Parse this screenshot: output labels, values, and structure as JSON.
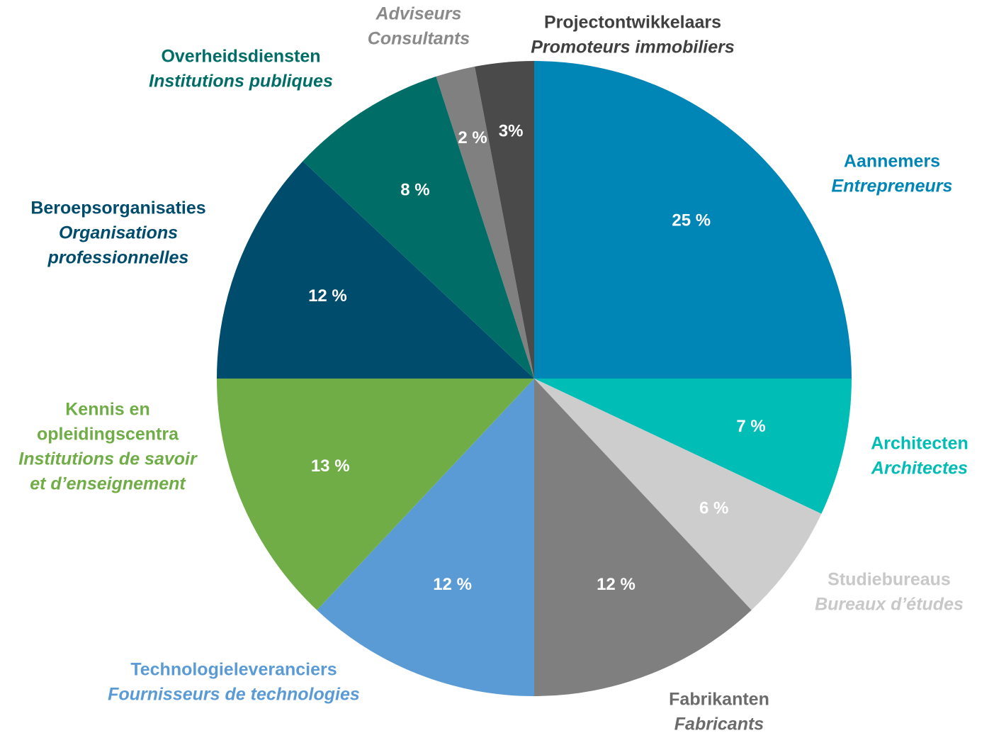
{
  "chart_data": {
    "type": "pie",
    "categories": [
      {
        "nl": [
          "Aannemers"
        ],
        "fr": [
          "Entrepreneurs"
        ]
      },
      {
        "nl": [
          "Architecten"
        ],
        "fr": [
          "Architectes"
        ]
      },
      {
        "nl": [
          "Studiebureaus"
        ],
        "fr": [
          "Bureaux d’études"
        ]
      },
      {
        "nl": [
          "Fabrikanten"
        ],
        "fr": [
          "Fabricants"
        ]
      },
      {
        "nl": [
          "Technologieleveranciers"
        ],
        "fr": [
          "Fournisseurs de technologies"
        ]
      },
      {
        "nl": [
          "Kennis en",
          "opleidingscentra"
        ],
        "fr": [
          "Institutions de savoir",
          "et d’enseignement"
        ]
      },
      {
        "nl": [
          "Beroepsorganisaties"
        ],
        "fr": [
          "Organisations",
          "professionnelles"
        ]
      },
      {
        "nl": [
          "Overheidsdiensten"
        ],
        "fr": [
          "Institutions publiques"
        ]
      },
      {
        "nl": [],
        "fr": [
          "Adviseurs",
          "Consultants"
        ]
      },
      {
        "nl": [
          "Projectontwikkelaars"
        ],
        "fr": [
          "Promoteurs immobiliers"
        ]
      }
    ],
    "values": [
      25,
      7,
      6,
      12,
      12,
      13,
      12,
      8,
      2,
      3
    ],
    "value_labels": [
      "25 %",
      "7 %",
      "6 %",
      "12 %",
      "12 %",
      "13 %",
      "12 %",
      "8 %",
      "2 %",
      "3%"
    ],
    "colors": [
      "#0085b7",
      "#00bdb5",
      "#cdcdcd",
      "#7f7f7f",
      "#5b9bd5",
      "#70ad47",
      "#004c6d",
      "#006e66",
      "#808080",
      "#4a4a4a"
    ],
    "label_colors": [
      "#0085b7",
      "#00bdb5",
      "#c8c8c8",
      "#6b6b6b",
      "#5b9bd5",
      "#70ad47",
      "#004c6d",
      "#006e66",
      "#8a8a8a",
      "#404040"
    ]
  }
}
